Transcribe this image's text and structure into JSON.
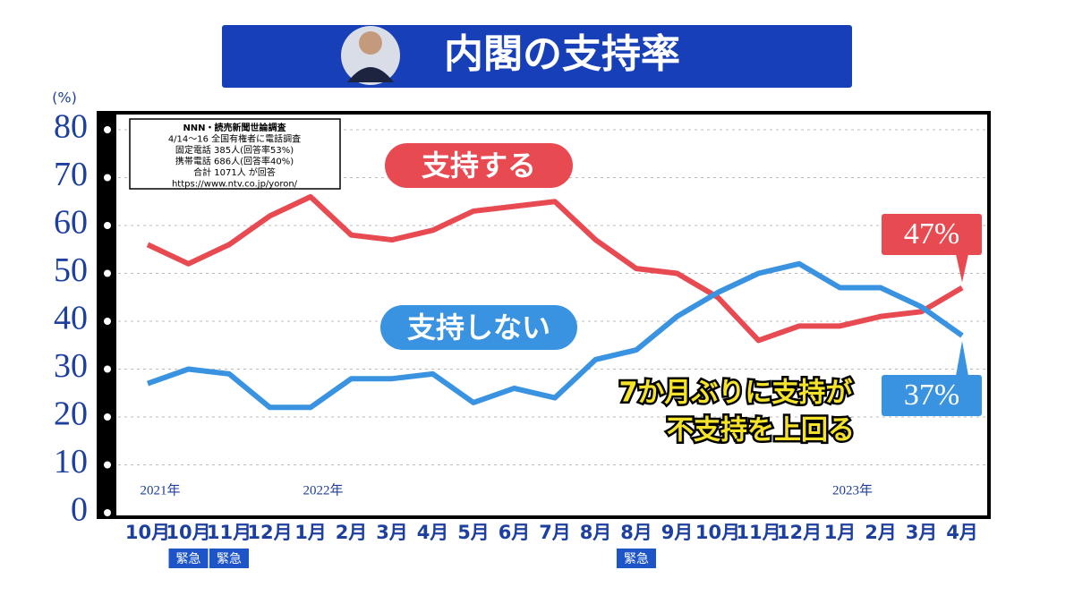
{
  "chart_data": {
    "type": "line",
    "title": "内閣の支持率",
    "unit": "(%)",
    "source_box": [
      "NNN・読売新聞世論調査",
      "4/14〜16 全国有権者に電話調査",
      "固定電話 385人(回答率53%)",
      "携帯電話 686人(回答率40%)",
      "合計 1071人 が回答",
      "https://www.ntv.co.jp/yoron/"
    ],
    "categories": [
      "10月",
      "10月",
      "11月",
      "12月",
      "1月",
      "2月",
      "3月",
      "4月",
      "5月",
      "6月",
      "7月",
      "8月",
      "8月",
      "9月",
      "10月",
      "11月",
      "12月",
      "1月",
      "2月",
      "3月",
      "4月"
    ],
    "category_notes": [
      null,
      "緊急",
      "緊急",
      null,
      null,
      null,
      null,
      null,
      null,
      null,
      null,
      null,
      "緊急",
      null,
      null,
      null,
      null,
      null,
      null,
      null,
      null
    ],
    "year_labels": [
      "2021年",
      null,
      null,
      null,
      "2022年",
      null,
      null,
      null,
      null,
      null,
      null,
      null,
      null,
      null,
      null,
      null,
      null,
      "2023年",
      null,
      null,
      null
    ],
    "series": [
      {
        "name": "支持する",
        "color": "#e84a52",
        "values": [
          56,
          52,
          56,
          62,
          66,
          58,
          57,
          59,
          63,
          64,
          65,
          57,
          51,
          50,
          45,
          36,
          39,
          39,
          41,
          42,
          47
        ],
        "value_labels": [
          null,
          null,
          null,
          null,
          null,
          null,
          null,
          null,
          null,
          null,
          null,
          null,
          null,
          null,
          null,
          null,
          null,
          null,
          null,
          null,
          "47%"
        ]
      },
      {
        "name": "支持しない",
        "color": "#3a93e0",
        "values": [
          27,
          30,
          29,
          22,
          22,
          28,
          28,
          29,
          23,
          26,
          24,
          32,
          34,
          41,
          46,
          50,
          52,
          47,
          47,
          43,
          37
        ],
        "value_labels": [
          null,
          null,
          null,
          null,
          null,
          null,
          null,
          null,
          null,
          null,
          null,
          null,
          null,
          null,
          null,
          null,
          null,
          null,
          null,
          null,
          "37%"
        ]
      }
    ],
    "annotation": [
      "7か月ぶりに支持が",
      "不支持を上回る"
    ],
    "ylim": [
      0,
      80
    ],
    "yticks": [
      0,
      10,
      20,
      30,
      40,
      50,
      60,
      70,
      80
    ],
    "grid": true
  }
}
